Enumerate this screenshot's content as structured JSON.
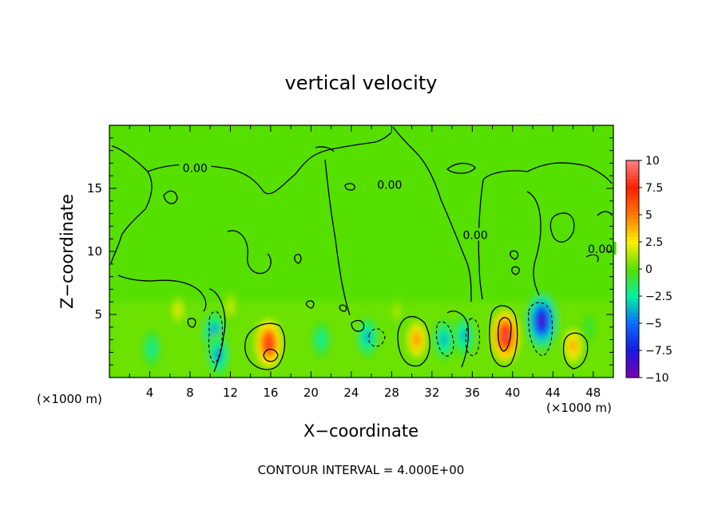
{
  "chart_data": {
    "type": "heatmap",
    "title": "vertical velocity",
    "xlabel": "X−coordinate",
    "ylabel": "Z−coordinate",
    "x_unit_left": "(×1000 m)",
    "x_unit_right": "(×1000 m)",
    "footer": "CONTOUR INTERVAL = 4.000E+00",
    "xlim": [
      0,
      50
    ],
    "ylim": [
      0,
      20
    ],
    "x_ticks": [
      4,
      8,
      12,
      16,
      20,
      24,
      28,
      32,
      36,
      40,
      44,
      48
    ],
    "y_ticks": [
      5,
      10,
      15
    ],
    "color_range": [
      -10,
      10
    ],
    "colorbar_labels": [
      "10",
      "7.5",
      "5",
      "2.5",
      "0",
      "−2.5",
      "−5",
      "−7.5",
      "−10"
    ],
    "colorbar_values": [
      10,
      7.5,
      5,
      2.5,
      0,
      -2.5,
      -5,
      -7.5,
      -10
    ],
    "colorbar_colors": [
      "#ff8080",
      "#ff1e00",
      "#ff7a00",
      "#fff000",
      "#55e000",
      "#00f2a0",
      "#0a6cff",
      "#1818e0",
      "#8000b0"
    ],
    "contour_labels": [
      {
        "text": "0.00",
        "x": 8.5,
        "y": 16.6
      },
      {
        "text": "0.00",
        "x": 27.8,
        "y": 15.3
      },
      {
        "text": "0.00",
        "x": 36.3,
        "y": 11.3
      },
      {
        "text": "0.00",
        "x": 48.7,
        "y": 10.2
      }
    ],
    "features": [
      {
        "x": 15.8,
        "z": 2.7,
        "value": 9.0
      },
      {
        "x": 39.3,
        "z": 3.3,
        "value": 10.0
      },
      {
        "x": 30.5,
        "z": 3.0,
        "value": 5.5
      },
      {
        "x": 46.0,
        "z": 2.5,
        "value": 5.0
      },
      {
        "x": 42.9,
        "z": 4.5,
        "value": -10.0
      },
      {
        "x": 10.4,
        "z": 3.5,
        "value": -5.5
      },
      {
        "x": 10.8,
        "z": 1.8,
        "value": -5.0
      },
      {
        "x": 25.6,
        "z": 3.2,
        "value": -4.5
      },
      {
        "x": 33.2,
        "z": 3.0,
        "value": -4.5
      },
      {
        "x": 35.2,
        "z": 3.3,
        "value": -4.5
      },
      {
        "x": 4.2,
        "z": 2.3,
        "value": -3.0
      },
      {
        "x": 21.0,
        "z": 3.0,
        "value": -3.0
      },
      {
        "x": 6.8,
        "z": 5.3,
        "value": 2.5
      },
      {
        "x": 12.0,
        "z": 5.6,
        "value": 2.0
      },
      {
        "x": 28.5,
        "z": 5.2,
        "value": 1.5
      },
      {
        "x": 47.6,
        "z": 4.0,
        "value": -1.0
      }
    ]
  }
}
